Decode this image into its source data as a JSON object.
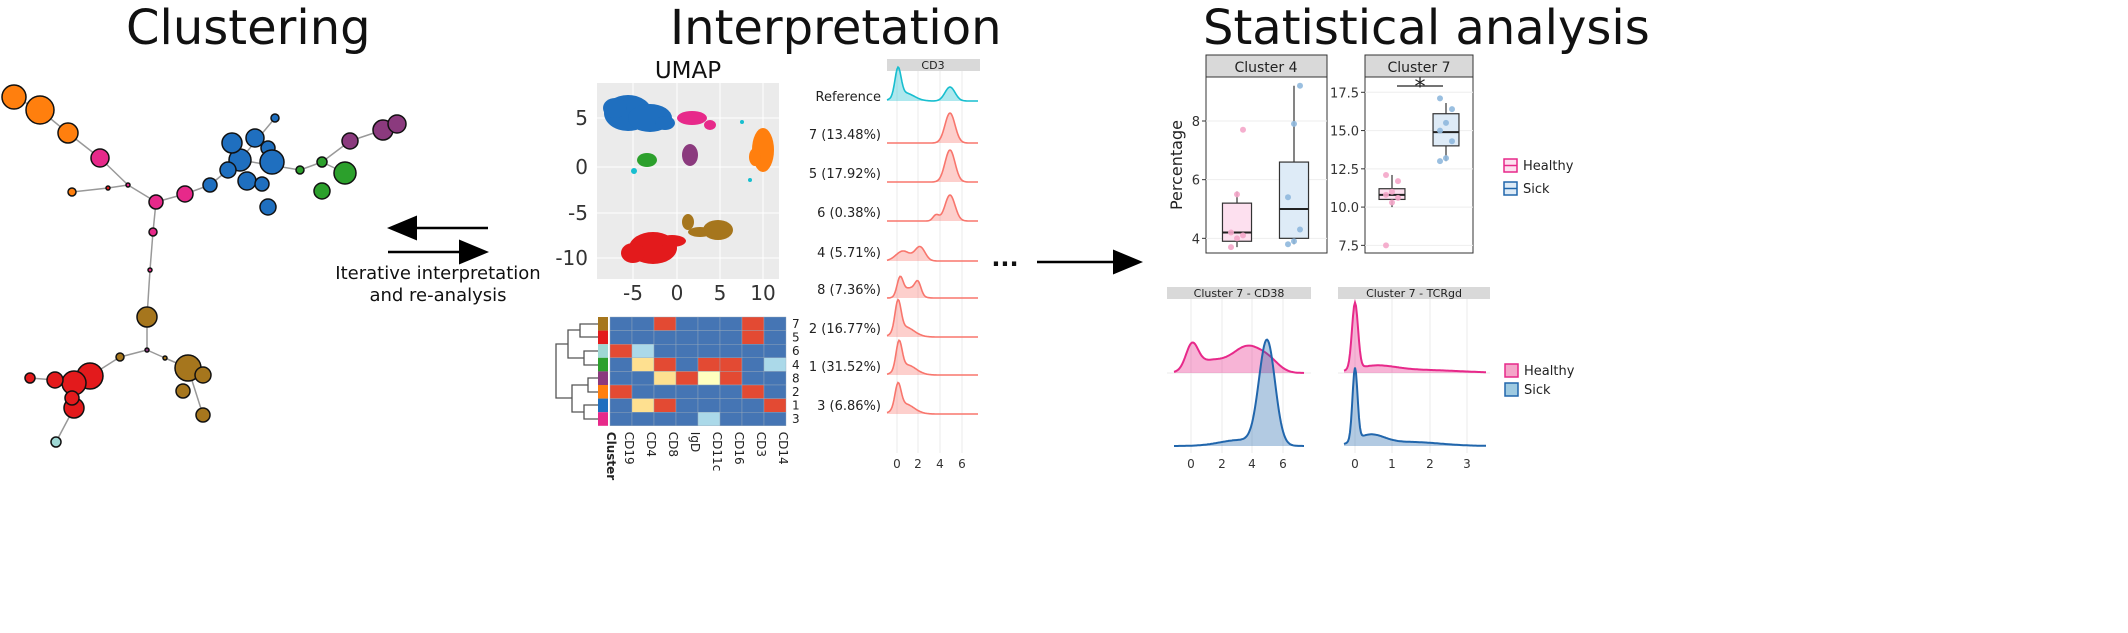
{
  "headings": {
    "clustering": "Clustering",
    "interpretation": "Interpretation",
    "statistical": "Statistical analysis"
  },
  "colors": {
    "orange": "#ff7f0e",
    "blue": "#1f6fbf",
    "green": "#2ca02c",
    "purple": "#8b3a7e",
    "pink": "#e7298a",
    "red": "#e31a1c",
    "brown": "#a6761d",
    "lightblue": "#9fd8d4",
    "teal": "#17becf",
    "salmon": "#f8766d",
    "healthy": "#e7298a",
    "sick": "#2166ac"
  },
  "arrows": {
    "caption_line1": "Iterative interpretation",
    "caption_line2": "and re-analysis",
    "ellipsis": "..."
  },
  "umap": {
    "title": "UMAP",
    "x_ticks": [
      "-5",
      "0",
      "5",
      "10"
    ],
    "y_ticks": [
      "5",
      "0",
      "-5",
      "-10"
    ]
  },
  "heatmap": {
    "columns": [
      "Cluster",
      "CD19",
      "CD4",
      "CD8",
      "IgD",
      "CD11c",
      "CD16",
      "CD3",
      "CD14"
    ],
    "rows": [
      "7",
      "5",
      "6",
      "4",
      "8",
      "2",
      "1",
      "3"
    ]
  },
  "ridge": {
    "marker": "CD3",
    "reference_label": "Reference",
    "rows": [
      {
        "label": "7 (13.48%)"
      },
      {
        "label": "5 (17.92%)"
      },
      {
        "label": "6 (0.38%)"
      },
      {
        "label": "4 (5.71%)"
      },
      {
        "label": "8 (7.36%)"
      },
      {
        "label": "2 (16.77%)"
      },
      {
        "label": "1 (31.52%)"
      },
      {
        "label": "3 (6.86%)"
      }
    ],
    "x_ticks": [
      "0",
      "2",
      "4",
      "6"
    ]
  },
  "chart_data": [
    {
      "type": "box",
      "title": "Cluster 4",
      "ylabel": "Percentage",
      "y_ticks": [
        "4",
        "6",
        "8"
      ],
      "ylim": [
        3.5,
        9.5
      ],
      "groups": [
        {
          "name": "Healthy",
          "q1": 3.9,
          "median": 4.2,
          "q3": 5.2,
          "min": 3.7,
          "max": 5.6,
          "points": [
            3.7,
            4.0,
            4.1,
            4.2,
            5.5,
            7.7
          ]
        },
        {
          "name": "Sick",
          "q1": 4.0,
          "median": 5.0,
          "q3": 6.6,
          "min": 3.8,
          "max": 9.2,
          "points": [
            3.8,
            3.9,
            4.3,
            5.4,
            7.9,
            9.2
          ]
        }
      ]
    },
    {
      "type": "box",
      "title": "Cluster 7",
      "y_ticks": [
        "7.5",
        "10.0",
        "12.5",
        "15.0",
        "17.5"
      ],
      "ylim": [
        7,
        18.5
      ],
      "significance": "*",
      "groups": [
        {
          "name": "Healthy",
          "q1": 10.5,
          "median": 10.8,
          "q3": 11.2,
          "min": 10.0,
          "max": 12.1,
          "points": [
            7.5,
            10.3,
            10.6,
            10.8,
            11.0,
            11.7,
            12.1
          ]
        },
        {
          "name": "Sick",
          "q1": 14.0,
          "median": 14.9,
          "q3": 16.1,
          "min": 13.0,
          "max": 16.8,
          "points": [
            13.0,
            13.2,
            14.3,
            15.0,
            15.5,
            16.4,
            17.1
          ]
        }
      ]
    },
    {
      "type": "area",
      "title": "Cluster 7 - CD38",
      "x_ticks": [
        "0",
        "2",
        "4",
        "6"
      ],
      "series": [
        {
          "name": "Healthy"
        },
        {
          "name": "Sick"
        }
      ]
    },
    {
      "type": "area",
      "title": "Cluster 7 - TCRgd",
      "x_ticks": [
        "0",
        "1",
        "2",
        "3"
      ],
      "series": [
        {
          "name": "Healthy"
        },
        {
          "name": "Sick"
        }
      ]
    }
  ],
  "legend": {
    "healthy": "Healthy",
    "sick": "Sick"
  }
}
